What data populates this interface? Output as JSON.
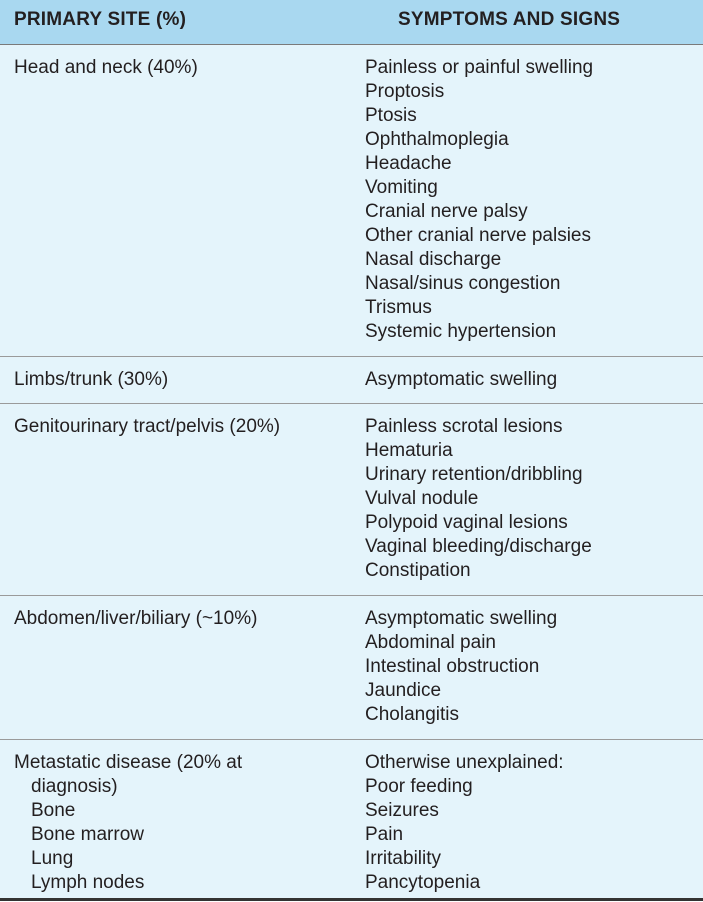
{
  "headers": {
    "primary_site": "PRIMARY SITE (%)",
    "symptoms": "SYMPTOMS AND SIGNS"
  },
  "rows": [
    {
      "site_lines": [
        "Head and neck (40%)"
      ],
      "symptoms": [
        "Painless or painful swelling",
        "Proptosis",
        "Ptosis",
        "Ophthalmoplegia",
        "Headache",
        "Vomiting",
        "Cranial nerve palsy",
        "Other cranial nerve palsies",
        "Nasal discharge",
        "Nasal/sinus congestion",
        "Trismus",
        "Systemic hypertension"
      ]
    },
    {
      "site_lines": [
        "Limbs/trunk (30%)"
      ],
      "symptoms": [
        "Asymptomatic swelling"
      ]
    },
    {
      "site_lines": [
        "Genitourinary tract/pelvis (20%)"
      ],
      "symptoms": [
        "Painless scrotal lesions",
        "Hematuria",
        "Urinary retention/dribbling",
        "Vulval nodule",
        "Polypoid vaginal lesions",
        "Vaginal bleeding/discharge",
        "Constipation"
      ]
    },
    {
      "site_lines": [
        "Abdomen/liver/biliary (~10%)"
      ],
      "symptoms": [
        "Asymptomatic swelling",
        "Abdominal pain",
        "Intestinal obstruction",
        "Jaundice",
        "Cholangitis"
      ]
    },
    {
      "site_lines": [
        "Metastatic disease (20% at",
        "diagnosis)",
        "Bone",
        "Bone marrow",
        "Lung",
        "Lymph nodes"
      ],
      "symptoms": [
        "Otherwise unexplained:",
        "Poor feeding",
        "Seizures",
        "Pain",
        "Irritability",
        "Pancytopenia"
      ]
    }
  ]
}
